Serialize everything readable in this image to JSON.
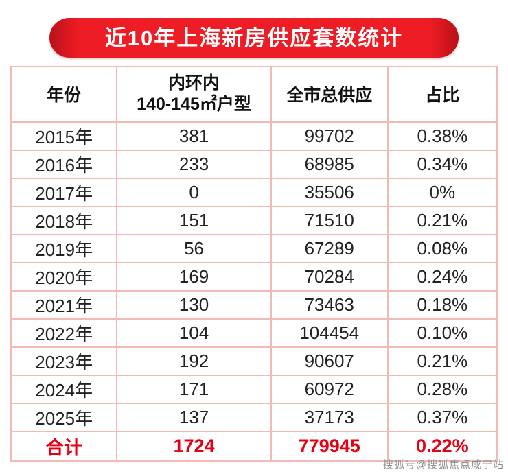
{
  "banner": {
    "title": "近10年上海新房供应套数统计",
    "color": "#ee1c24"
  },
  "table": {
    "col_headers": {
      "year": "年份",
      "inner_line1": "内环内",
      "inner_line2": "140-145㎡户型",
      "citywide": "全市总供应",
      "share": "占比"
    },
    "rows": [
      {
        "year": "2015年",
        "inner": "381",
        "citywide": "99702",
        "share": "0.38%"
      },
      {
        "year": "2016年",
        "inner": "233",
        "citywide": "68985",
        "share": "0.34%"
      },
      {
        "year": "2017年",
        "inner": "0",
        "citywide": "35506",
        "share": "0%"
      },
      {
        "year": "2018年",
        "inner": "151",
        "citywide": "71510",
        "share": "0.21%"
      },
      {
        "year": "2019年",
        "inner": "56",
        "citywide": "67289",
        "share": "0.08%"
      },
      {
        "year": "2020年",
        "inner": "169",
        "citywide": "70284",
        "share": "0.24%"
      },
      {
        "year": "2021年",
        "inner": "130",
        "citywide": "73463",
        "share": "0.18%"
      },
      {
        "year": "2022年",
        "inner": "104",
        "citywide": "104454",
        "share": "0.10%"
      },
      {
        "year": "2023年",
        "inner": "192",
        "citywide": "90607",
        "share": "0.21%"
      },
      {
        "year": "2024年",
        "inner": "171",
        "citywide": "60972",
        "share": "0.28%"
      },
      {
        "year": "2025年",
        "inner": "137",
        "citywide": "37173",
        "share": "0.37%"
      }
    ],
    "total": {
      "year": "合计",
      "inner": "1724",
      "citywide": "779945",
      "share": "0.22%"
    },
    "border_color": "#f3b9b4",
    "total_color": "#e60012"
  },
  "watermark": "搜狐号@搜狐焦点咸宁站",
  "chart_data": {
    "type": "table",
    "title": "近10年上海新房供应套数统计",
    "columns": [
      "年份",
      "内环内140-145㎡户型",
      "全市总供应",
      "占比"
    ],
    "rows": [
      [
        "2015年",
        381,
        99702,
        "0.38%"
      ],
      [
        "2016年",
        233,
        68985,
        "0.34%"
      ],
      [
        "2017年",
        0,
        35506,
        "0%"
      ],
      [
        "2018年",
        151,
        71510,
        "0.21%"
      ],
      [
        "2019年",
        56,
        67289,
        "0.08%"
      ],
      [
        "2020年",
        169,
        70284,
        "0.24%"
      ],
      [
        "2021年",
        130,
        73463,
        "0.18%"
      ],
      [
        "2022年",
        104,
        104454,
        "0.10%"
      ],
      [
        "2023年",
        192,
        90607,
        "0.21%"
      ],
      [
        "2024年",
        171,
        60972,
        "0.28%"
      ],
      [
        "2025年",
        137,
        37173,
        "0.37%"
      ],
      [
        "合计",
        1724,
        779945,
        "0.22%"
      ]
    ]
  }
}
